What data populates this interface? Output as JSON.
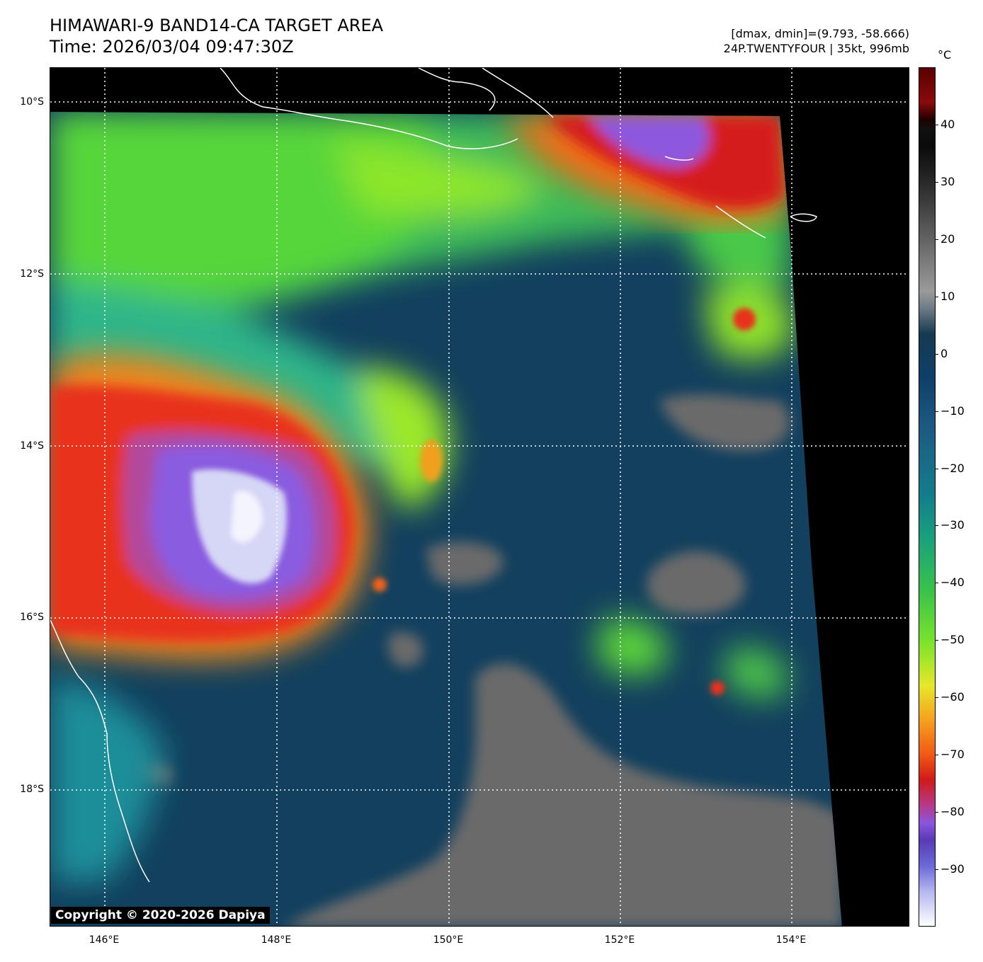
{
  "header": {
    "title_line1": "HIMAWARI-9 BAND14-CA TARGET AREA",
    "title_line2": "Time: 2026/03/04 09:47:30Z",
    "meta_line1": "[dmax, dmin]=(9.793, -58.666)",
    "meta_line2": "24P.TWENTYFOUR | 35kt, 996mb"
  },
  "map": {
    "lat_labels": [
      "10°S",
      "12°S",
      "14°S",
      "16°S",
      "18°S"
    ],
    "lon_labels": [
      "146°E",
      "148°E",
      "150°E",
      "152°E",
      "154°E"
    ],
    "lon_range": [
      145.4,
      155.4
    ],
    "lat_range": [
      -19.6,
      -9.6
    ],
    "gridlines": true,
    "copyright": "Copyright © 2020-2026 Dapiya"
  },
  "colorbar": {
    "unit": "°C",
    "ticks": [
      "40",
      "30",
      "20",
      "10",
      "0",
      "−10",
      "−20",
      "−30",
      "−40",
      "−50",
      "−60",
      "−70",
      "−80",
      "−90"
    ],
    "tick_values": [
      40,
      30,
      20,
      10,
      0,
      -10,
      -20,
      -30,
      -40,
      -50,
      -60,
      -70,
      -80,
      -90
    ],
    "range": [
      -100,
      50
    ]
  }
}
